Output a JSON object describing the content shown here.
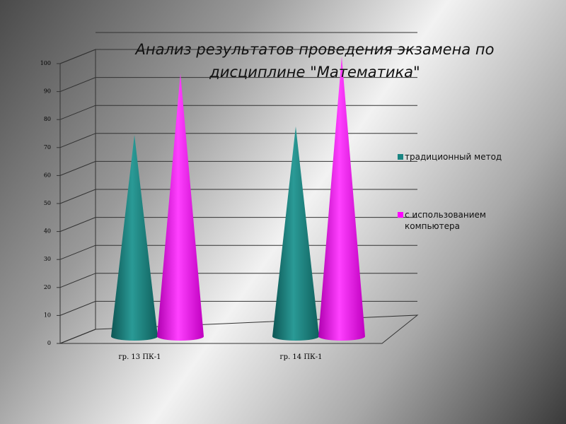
{
  "chart_data": {
    "type": "cone",
    "title": "Анализ результатов проведения экзамена по дисциплине \"Математика\"",
    "categories": [
      "гр. 13 ПК-1",
      "гр. 14 ПК-1"
    ],
    "series": [
      {
        "name": "традиционный метод",
        "color": "#1a8582",
        "values": [
          72,
          75
        ]
      },
      {
        "name": "с использованием компьютера",
        "color": "#ff00ff",
        "values": [
          94,
          100
        ]
      }
    ],
    "ylim": [
      0,
      100
    ],
    "yticks": [
      0,
      10,
      20,
      30,
      40,
      50,
      60,
      70,
      80,
      90,
      100
    ],
    "grid": true,
    "legend": "right"
  }
}
